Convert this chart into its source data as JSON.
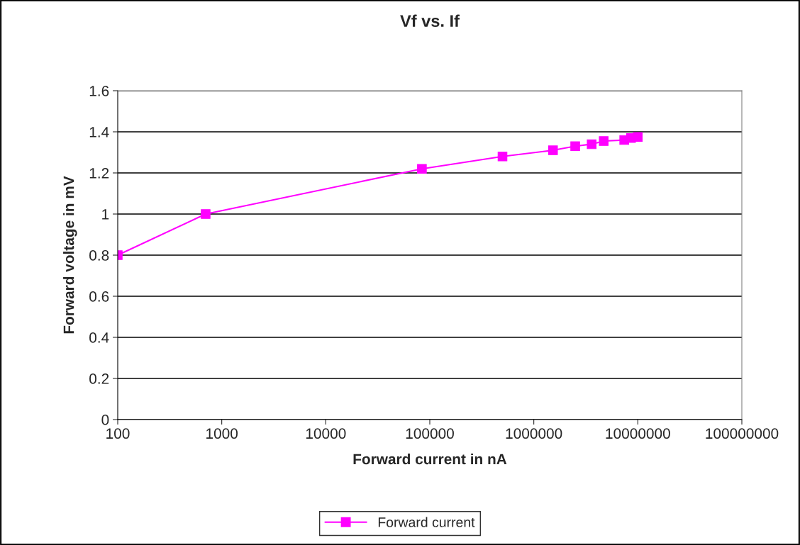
{
  "chart_data": {
    "type": "line",
    "title": "Vf vs. If",
    "xlabel": "Forward current in nA",
    "ylabel": "Forward voltage in mV",
    "log": "x",
    "xlim": [
      100,
      100000000
    ],
    "xticks": [
      100,
      1000,
      10000,
      100000,
      1000000,
      10000000,
      100000000
    ],
    "ylim": [
      0,
      1.6
    ],
    "yticks": [
      0,
      0.2,
      0.4,
      0.6,
      0.8,
      1,
      1.2,
      1.4,
      1.6
    ],
    "grid": "y",
    "legend": "bottom",
    "marker": "square",
    "line_style": "solid",
    "series": [
      {
        "name": "Forward current",
        "color": "#ff00ff",
        "x": [
          100,
          700,
          84000,
          500000,
          1530000,
          2500000,
          3600000,
          4700000,
          7400000,
          8600000,
          10000000
        ],
        "values": [
          0.8,
          1.0,
          1.22,
          1.28,
          1.31,
          1.33,
          1.34,
          1.355,
          1.36,
          1.37,
          1.375
        ]
      }
    ]
  }
}
